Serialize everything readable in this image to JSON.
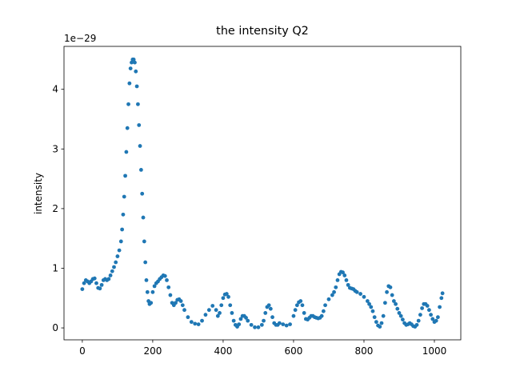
{
  "chart_data": {
    "type": "scatter",
    "title": "the intensity Q2",
    "y_label": "intensity",
    "offset_text": "1e−29",
    "x": [
      0,
      5,
      10,
      15,
      20,
      25,
      30,
      35,
      40,
      45,
      50,
      55,
      60,
      65,
      70,
      75,
      80,
      85,
      90,
      95,
      100,
      105,
      110,
      113,
      116,
      119,
      122,
      125,
      128,
      131,
      134,
      137,
      140,
      143,
      146,
      149,
      152,
      155,
      158,
      161,
      164,
      167,
      170,
      173,
      176,
      179,
      182,
      185,
      188,
      191,
      195,
      200,
      205,
      210,
      215,
      220,
      225,
      230,
      235,
      240,
      245,
      250,
      255,
      260,
      265,
      270,
      275,
      280,
      285,
      290,
      300,
      310,
      320,
      330,
      340,
      350,
      360,
      370,
      380,
      385,
      390,
      395,
      400,
      405,
      410,
      415,
      420,
      425,
      430,
      435,
      440,
      445,
      450,
      455,
      460,
      465,
      470,
      480,
      490,
      500,
      510,
      515,
      520,
      525,
      530,
      535,
      540,
      545,
      550,
      555,
      560,
      570,
      580,
      590,
      600,
      605,
      610,
      615,
      620,
      625,
      630,
      635,
      640,
      645,
      650,
      655,
      660,
      665,
      670,
      675,
      680,
      685,
      690,
      700,
      710,
      715,
      720,
      725,
      730,
      735,
      740,
      745,
      750,
      755,
      760,
      765,
      770,
      775,
      780,
      790,
      800,
      810,
      815,
      820,
      825,
      830,
      835,
      840,
      845,
      850,
      855,
      860,
      865,
      870,
      875,
      880,
      885,
      890,
      895,
      900,
      905,
      910,
      915,
      920,
      925,
      930,
      935,
      940,
      945,
      950,
      955,
      960,
      965,
      970,
      975,
      980,
      985,
      990,
      995,
      1000,
      1005,
      1010,
      1015,
      1020,
      1023
    ],
    "values": [
      0.65,
      0.75,
      0.8,
      0.78,
      0.75,
      0.78,
      0.82,
      0.83,
      0.75,
      0.67,
      0.66,
      0.72,
      0.8,
      0.82,
      0.8,
      0.82,
      0.88,
      0.95,
      1.02,
      1.1,
      1.2,
      1.3,
      1.45,
      1.65,
      1.9,
      2.2,
      2.55,
      2.95,
      3.35,
      3.75,
      4.1,
      4.35,
      4.45,
      4.5,
      4.5,
      4.45,
      4.3,
      4.05,
      3.75,
      3.4,
      3.05,
      2.65,
      2.25,
      1.85,
      1.45,
      1.1,
      0.8,
      0.6,
      0.45,
      0.4,
      0.42,
      0.6,
      0.7,
      0.75,
      0.78,
      0.82,
      0.85,
      0.88,
      0.87,
      0.8,
      0.68,
      0.55,
      0.42,
      0.38,
      0.42,
      0.47,
      0.48,
      0.45,
      0.38,
      0.3,
      0.18,
      0.1,
      0.07,
      0.06,
      0.12,
      0.22,
      0.3,
      0.37,
      0.3,
      0.2,
      0.25,
      0.38,
      0.5,
      0.56,
      0.57,
      0.52,
      0.38,
      0.25,
      0.12,
      0.05,
      0.02,
      0.06,
      0.15,
      0.2,
      0.2,
      0.17,
      0.12,
      0.05,
      0.01,
      0.01,
      0.05,
      0.12,
      0.25,
      0.35,
      0.38,
      0.32,
      0.18,
      0.08,
      0.05,
      0.05,
      0.08,
      0.06,
      0.04,
      0.06,
      0.2,
      0.3,
      0.38,
      0.43,
      0.45,
      0.38,
      0.25,
      0.15,
      0.14,
      0.17,
      0.2,
      0.2,
      0.18,
      0.17,
      0.16,
      0.17,
      0.2,
      0.28,
      0.38,
      0.48,
      0.55,
      0.6,
      0.68,
      0.8,
      0.9,
      0.94,
      0.93,
      0.88,
      0.8,
      0.72,
      0.67,
      0.66,
      0.65,
      0.62,
      0.6,
      0.57,
      0.52,
      0.45,
      0.4,
      0.35,
      0.28,
      0.18,
      0.1,
      0.04,
      0.02,
      0.08,
      0.2,
      0.42,
      0.6,
      0.7,
      0.68,
      0.55,
      0.45,
      0.4,
      0.32,
      0.25,
      0.2,
      0.14,
      0.08,
      0.05,
      0.06,
      0.08,
      0.06,
      0.03,
      0.02,
      0.05,
      0.12,
      0.22,
      0.33,
      0.4,
      0.4,
      0.37,
      0.3,
      0.22,
      0.15,
      0.1,
      0.12,
      0.18,
      0.35,
      0.5,
      0.58
    ],
    "color": "#1f77b4",
    "xlim": [
      -52,
      1075
    ],
    "xticks": [
      0,
      200,
      400,
      600,
      800,
      1000
    ],
    "ylim": [
      -0.2,
      4.72
    ],
    "yticks": [
      0,
      1,
      2,
      3,
      4
    ]
  }
}
